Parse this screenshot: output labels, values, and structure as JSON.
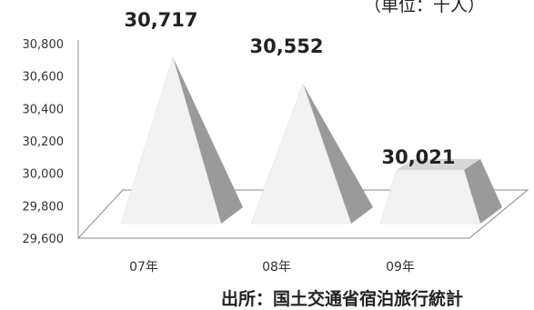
{
  "unit_note": "（単位：千人）",
  "source_note": "出所：国土交通省宿泊旅行統計",
  "chart_data": {
    "type": "bar",
    "style": "3d-pyramid",
    "categories": [
      "07年",
      "08年",
      "09年"
    ],
    "values": [
      30717,
      30552,
      30021
    ],
    "data_labels": [
      "30,717",
      "30,552",
      "30,021"
    ],
    "title": "",
    "xlabel": "",
    "ylabel": "",
    "ylim": [
      29600,
      30800
    ],
    "yticks": [
      29600,
      29800,
      30000,
      30200,
      30400,
      30600,
      30800
    ],
    "ytick_labels": [
      "29,600",
      "29,800",
      "30,000",
      "30,200",
      "30,400",
      "30,600",
      "30,800"
    ],
    "grid": false,
    "legend": "none",
    "colors": {
      "face_light": "#f2f2f2",
      "face_dark": "#9a9a9a",
      "top_face": "#d8d8d8",
      "floor": "#ffffff",
      "outline": "#888888"
    }
  }
}
